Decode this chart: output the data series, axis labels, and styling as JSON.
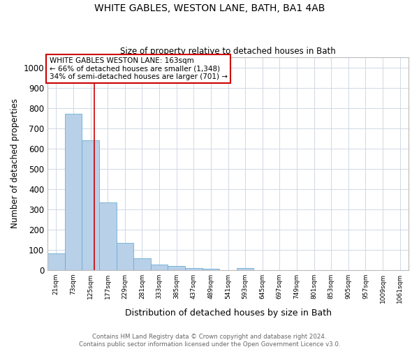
{
  "title": "WHITE GABLES, WESTON LANE, BATH, BA1 4AB",
  "subtitle": "Size of property relative to detached houses in Bath",
  "xlabel": "Distribution of detached houses by size in Bath",
  "ylabel": "Number of detached properties",
  "bar_labels": [
    "21sqm",
    "73sqm",
    "125sqm",
    "177sqm",
    "229sqm",
    "281sqm",
    "333sqm",
    "385sqm",
    "437sqm",
    "489sqm",
    "541sqm",
    "593sqm",
    "645sqm",
    "697sqm",
    "749sqm",
    "801sqm",
    "853sqm",
    "905sqm",
    "957sqm",
    "1009sqm",
    "1061sqm"
  ],
  "bar_heights": [
    83,
    770,
    640,
    333,
    133,
    58,
    25,
    18,
    10,
    7,
    0,
    10,
    0,
    0,
    0,
    0,
    0,
    0,
    0,
    0,
    0
  ],
  "bar_color": "#b8d0e8",
  "bar_edge_color": "#6baed6",
  "ylim": [
    0,
    1050
  ],
  "yticks": [
    0,
    100,
    200,
    300,
    400,
    500,
    600,
    700,
    800,
    900,
    1000
  ],
  "red_line_x": 163,
  "bin_width": 52,
  "annotation_lines": [
    "WHITE GABLES WESTON LANE: 163sqm",
    "← 66% of detached houses are smaller (1,348)",
    "34% of semi-detached houses are larger (701) →"
  ],
  "footer_lines": [
    "Contains HM Land Registry data © Crown copyright and database right 2024.",
    "Contains public sector information licensed under the Open Government Licence v3.0."
  ],
  "background_color": "#ffffff",
  "grid_color": "#d0d8e4"
}
